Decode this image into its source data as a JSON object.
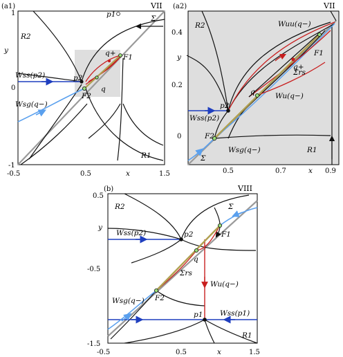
{
  "figure": {
    "panels": [
      {
        "id": "a1",
        "panel_label": "(a1)",
        "region_label": "VII",
        "y_axis_label": "y",
        "x_axis_label": "x",
        "x_ticks": [
          "-0.5",
          "0.5",
          "1.5"
        ],
        "y_ticks": [
          "1",
          "0",
          "-1"
        ],
        "labels": {
          "R2": "R2",
          "R1": "R1",
          "p1": "p1",
          "Sigma": "Σ",
          "Wss_p2": "Wss(p2)",
          "Wsg_qminus": "Wsg(q−)",
          "p2": "p2",
          "F2": "F2",
          "F1": "F1",
          "q": "q",
          "qplus": "q+"
        }
      },
      {
        "id": "a2",
        "panel_label": "(a2)",
        "region_label": "VII",
        "y_axis_label": "y",
        "x_axis_label": "x",
        "x_ticks": [
          "0.5",
          "0.7",
          "0.9"
        ],
        "y_ticks": [
          "0.4",
          "0.2",
          "0"
        ],
        "labels": {
          "R2": "R2",
          "R1": "R1",
          "Wuu_qminus": "Wuu(q−)",
          "Wu_qminus": "Wu(q−)",
          "Sigma_r_s": "Σrs",
          "Wss_p2": "Wss(p2)",
          "Wsg_qminus": "Wsg(q−)",
          "F1": "F1",
          "F2": "F2",
          "p2": "p2",
          "q": "q",
          "qplus": "q+",
          "Sigma": "Σ"
        }
      },
      {
        "id": "b",
        "panel_label": "(b)",
        "region_label": "VIII",
        "y_axis_label": "y",
        "x_axis_label": "x",
        "x_ticks": [
          "-0.5",
          "0.5",
          "1.5"
        ],
        "y_ticks": [
          "0.5",
          "-0.5",
          "-1.5"
        ],
        "labels": {
          "R2": "R2",
          "R1": "R1",
          "Wss_p2": "Wss(p2)",
          "Wss_p1": "Wss(p1)",
          "Wu_qminus": "Wu(q−)",
          "Sigma_r_s": "Σrs",
          "Wsg_qminus": "Wsg(q−)",
          "p2": "p2",
          "p1": "p1",
          "F1": "F1",
          "F2": "F2",
          "q": "q",
          "Sigma": "Σ"
        }
      }
    ],
    "colors": {
      "orbit_black": "#111111",
      "stable_blue": "#1f3fbf",
      "light_blue": "#5aa0ee",
      "unstable_red": "#c81e1e",
      "diagonal_grey": "#9a9a9a",
      "sigma_r_s_olive": "#b0a050",
      "shaded_grey": "#dedede",
      "point_green": "#9be07a"
    }
  }
}
